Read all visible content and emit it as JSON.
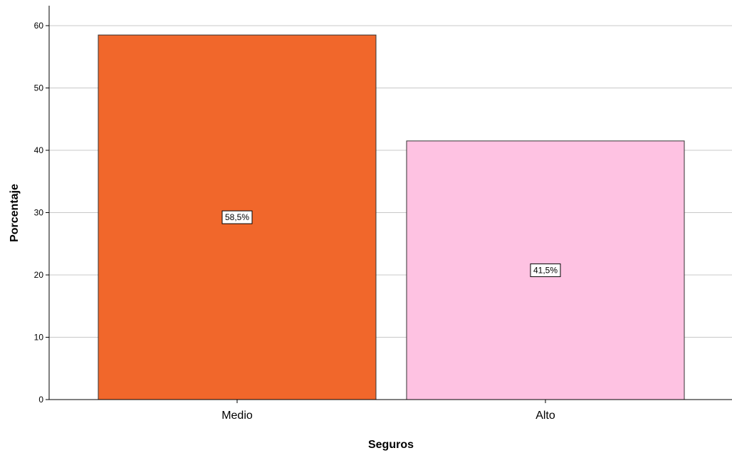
{
  "chart_data": {
    "type": "bar",
    "categories": [
      "Medio",
      "Alto"
    ],
    "values": [
      58.5,
      41.5
    ],
    "data_labels": [
      "58,5%",
      "41,5%"
    ],
    "colors": [
      "#f1672b",
      "#fec2e2"
    ],
    "title": "",
    "xlabel": "Seguros",
    "ylabel": "Porcentaje",
    "ylim": [
      0,
      60
    ],
    "yticks": [
      0,
      10,
      20,
      30,
      40,
      50,
      60
    ],
    "grid": true,
    "gridline_color": "#c8c8c8",
    "bar_outline_color": "#333333",
    "legend": "none"
  }
}
